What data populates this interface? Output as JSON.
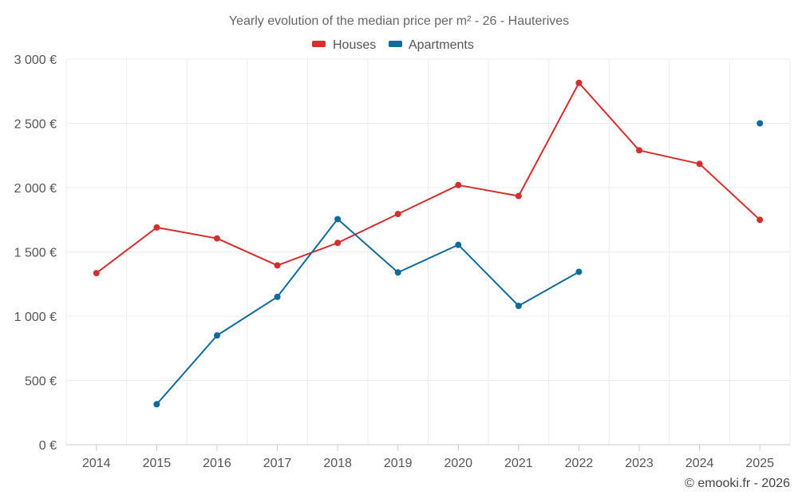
{
  "chart_data": {
    "type": "line",
    "title": "Yearly evolution of the median price per m² - 26 - Hauterives",
    "categories": [
      "2014",
      "2015",
      "2016",
      "2017",
      "2018",
      "2019",
      "2020",
      "2021",
      "2022",
      "2023",
      "2024",
      "2025"
    ],
    "series": [
      {
        "name": "Houses",
        "color": "#d32f2f",
        "values": [
          1335,
          1690,
          1605,
          1395,
          1570,
          1795,
          2020,
          1935,
          2815,
          2290,
          2185,
          1750
        ]
      },
      {
        "name": "Apartments",
        "color": "#0f6b9a",
        "values": [
          null,
          315,
          850,
          1150,
          1755,
          1340,
          1555,
          1080,
          1345,
          null,
          null,
          2500
        ]
      }
    ],
    "ylim": [
      0,
      3000
    ],
    "yticks": [
      0,
      500,
      1000,
      1500,
      2000,
      2500,
      3000
    ],
    "ytick_labels": [
      "0 €",
      "500 €",
      "1 000 €",
      "1 500 €",
      "2 000 €",
      "2 500 €",
      "3 000 €"
    ],
    "xlabel": "",
    "ylabel": "",
    "legend_position": "top-center",
    "grid": true
  },
  "credit": "© emooki.fr - 2026"
}
